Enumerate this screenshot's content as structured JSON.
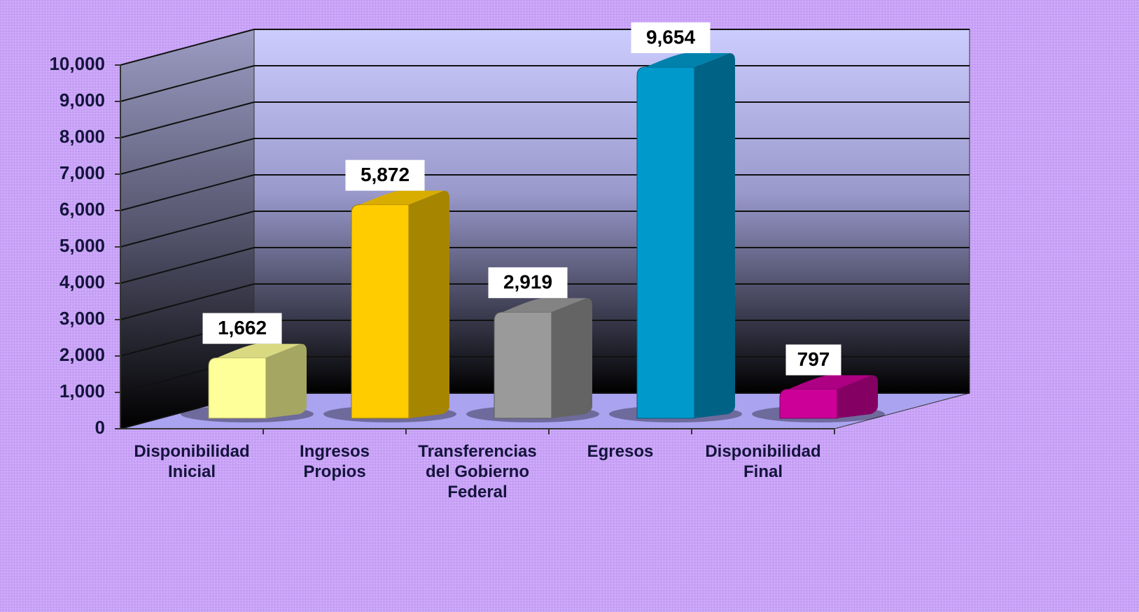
{
  "chart_data": {
    "type": "bar3d",
    "categories": [
      "Disponibilidad\nInicial",
      "Ingresos\nPropios",
      "Transferencias\ndel Gobierno\nFederal",
      "Egresos",
      "Disponibilidad\nFinal"
    ],
    "values": [
      1662,
      5872,
      2919,
      9654,
      797
    ],
    "value_labels": [
      "1,662",
      "5,872",
      "2,919",
      "9,654",
      "797"
    ],
    "colors": [
      "#ffff99",
      "#ffcc00",
      "#9a9a9a",
      "#0099cc",
      "#cc0099"
    ],
    "ylim": [
      0,
      10000
    ],
    "yticks": [
      0,
      {
        "value": 1000,
        "label": "1,000"
      },
      {
        "value": 2000,
        "label": "2,000"
      },
      {
        "value": 3000,
        "label": "3,000"
      },
      {
        "value": 4000,
        "label": "4,000"
      },
      {
        "value": 5000,
        "label": "5,000"
      },
      {
        "value": 6000,
        "label": "6,000"
      },
      {
        "value": 7000,
        "label": "7,000"
      },
      {
        "value": 8000,
        "label": "8,000"
      },
      {
        "value": 9000,
        "label": "9,000"
      },
      {
        "value": 10000,
        "label": "10,000"
      }
    ],
    "grid": true
  }
}
